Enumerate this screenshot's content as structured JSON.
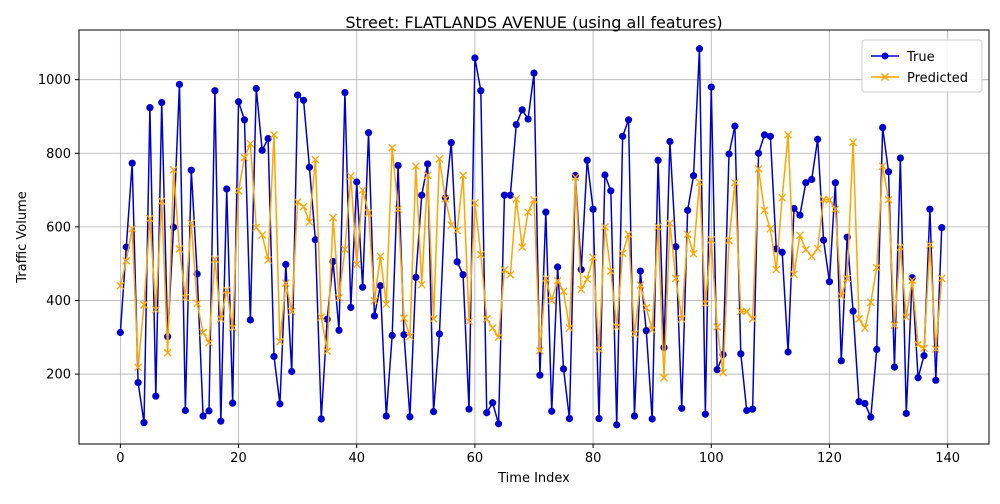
{
  "chart_data": {
    "type": "line",
    "title": "Street: FLATLANDS AVENUE (using all features)",
    "xlabel": "Time Index",
    "ylabel": "Traffic Volume",
    "xlim": [
      -7,
      147
    ],
    "ylim": [
      10,
      1135
    ],
    "x_ticks": [
      0,
      20,
      40,
      60,
      80,
      100,
      120,
      140
    ],
    "y_ticks": [
      200,
      400,
      600,
      800,
      1000
    ],
    "grid": true,
    "legend_position": "upper right",
    "series": [
      {
        "name": "True",
        "color": "#0000cc",
        "marker": "circle",
        "values": [
          313,
          545,
          773,
          177,
          68,
          924,
          140,
          938,
          302,
          599,
          987,
          101,
          754,
          472,
          86,
          100,
          970,
          72,
          703,
          121,
          940,
          891,
          347,
          976,
          808,
          840,
          248,
          119,
          498,
          207,
          958,
          944,
          762,
          565,
          78,
          349,
          506,
          319,
          965,
          381,
          722,
          436,
          856,
          358,
          440,
          86,
          305,
          767,
          307,
          84,
          463,
          686,
          771,
          98,
          309,
          679,
          829,
          505,
          470,
          105,
          1059,
          970,
          95,
          122,
          65,
          686,
          686,
          878,
          918,
          893,
          1018,
          197,
          640,
          99,
          491,
          214,
          79,
          740,
          484,
          781,
          648,
          79,
          741,
          698,
          62,
          846,
          891,
          86,
          480,
          318,
          78,
          781,
          272,
          832,
          546,
          107,
          645,
          739,
          1084,
          91,
          980,
          212,
          253,
          798,
          874,
          255,
          101,
          105,
          800,
          850,
          846,
          540,
          531,
          260,
          650,
          632,
          720,
          729,
          838,
          564,
          451,
          720,
          236,
          572,
          371,
          125,
          120,
          83,
          267,
          870,
          750,
          219,
          787,
          93,
          462,
          190,
          250,
          648,
          183,
          598
        ]
      },
      {
        "name": "Predicted",
        "color": "#ffa500",
        "marker": "x",
        "values": [
          440,
          508,
          595,
          218,
          388,
          623,
          375,
          670,
          258,
          755,
          540,
          408,
          610,
          392,
          313,
          285,
          512,
          350,
          428,
          326,
          698,
          788,
          826,
          598,
          578,
          510,
          850,
          288,
          447,
          370,
          668,
          655,
          613,
          783,
          355,
          262,
          625,
          407,
          539,
          738,
          498,
          700,
          638,
          399,
          520,
          390,
          815,
          648,
          352,
          302,
          765,
          443,
          740,
          350,
          785,
          676,
          605,
          590,
          740,
          343,
          665,
          525,
          350,
          325,
          300,
          483,
          470,
          676,
          545,
          640,
          674,
          263,
          460,
          400,
          454,
          425,
          325,
          735,
          430,
          458,
          517,
          267,
          600,
          480,
          328,
          528,
          580,
          309,
          442,
          380,
          320,
          600,
          190,
          610,
          460,
          350,
          580,
          527,
          721,
          392,
          565,
          328,
          204,
          563,
          720,
          370,
          370,
          350,
          758,
          645,
          595,
          484,
          679,
          850,
          471,
          577,
          538,
          520,
          541,
          675,
          673,
          648,
          412,
          460,
          830,
          350,
          325,
          395,
          489,
          765,
          674,
          333,
          545,
          355,
          455,
          280,
          270,
          551,
          268,
          460
        ]
      }
    ]
  }
}
